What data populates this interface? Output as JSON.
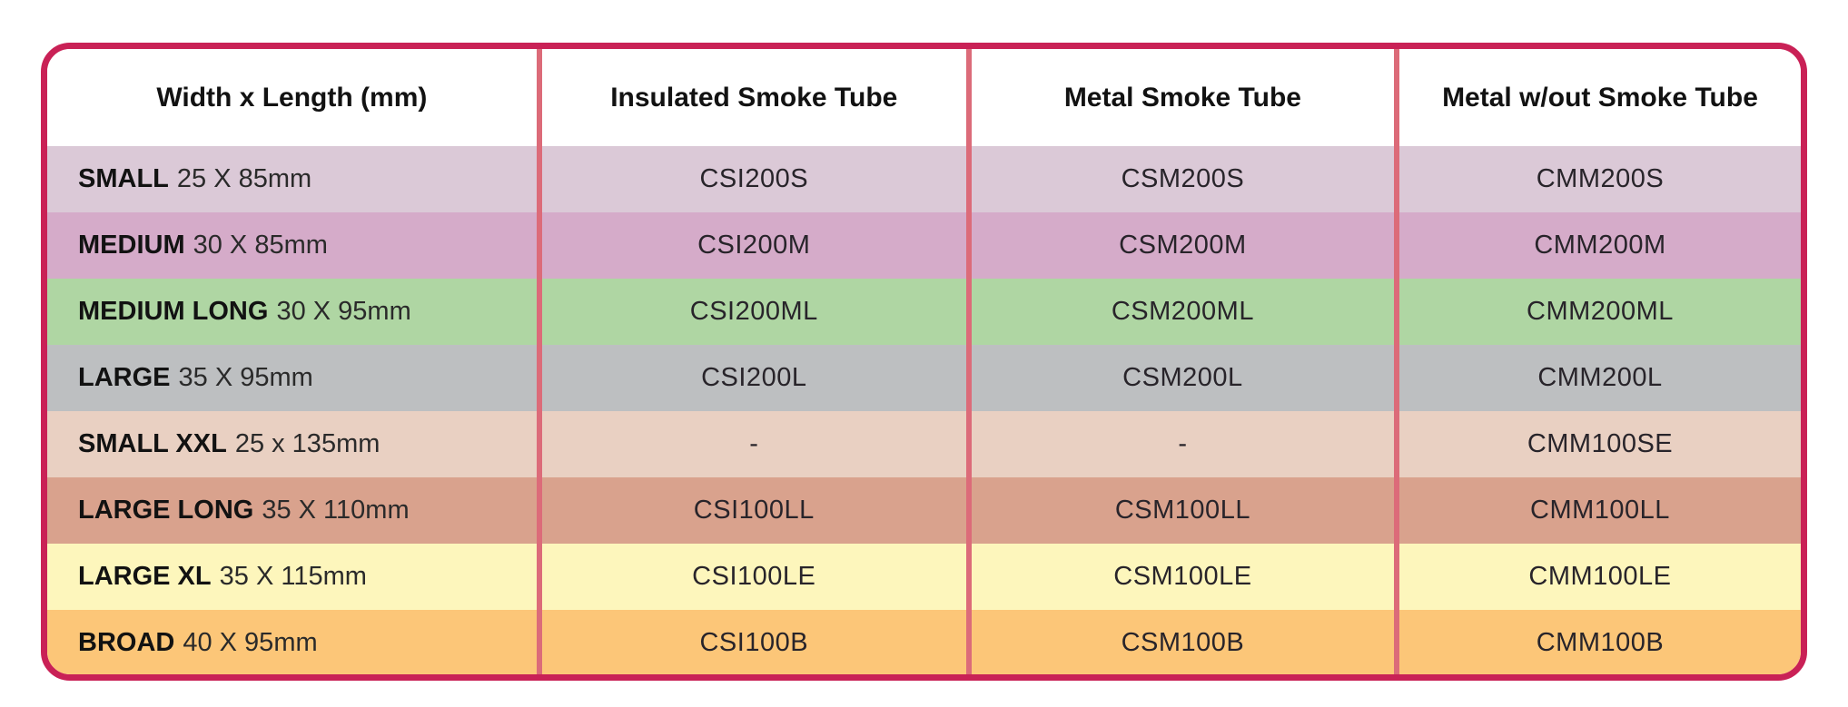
{
  "colors": {
    "table_border": "#c92156",
    "column_divider": "#dc6b79",
    "header_background": "#ffffff"
  },
  "chart_data": {
    "type": "table",
    "columns": [
      "Width x Length (mm)",
      "Insulated Smoke Tube",
      "Metal Smoke Tube",
      "Metal w/out Smoke Tube"
    ],
    "rows": [
      {
        "size_name": "SMALL",
        "dimensions": "25 X 85mm",
        "insulated_smoke_tube": "CSI200S",
        "metal_smoke_tube": "CSM200S",
        "metal_without_smoke_tube": "CMM200S",
        "row_color": "#dbc9d7"
      },
      {
        "size_name": "MEDIUM",
        "dimensions": "30 X 85mm",
        "insulated_smoke_tube": "CSI200M",
        "metal_smoke_tube": "CSM200M",
        "metal_without_smoke_tube": "CMM200M",
        "row_color": "#d5abc9"
      },
      {
        "size_name": "MEDIUM LONG",
        "dimensions": "30 X 95mm",
        "insulated_smoke_tube": "CSI200ML",
        "metal_smoke_tube": "CSM200ML",
        "metal_without_smoke_tube": "CMM200ML",
        "row_color": "#afd6a3"
      },
      {
        "size_name": "LARGE",
        "dimensions": "35 X 95mm",
        "insulated_smoke_tube": "CSI200L",
        "metal_smoke_tube": "CSM200L",
        "metal_without_smoke_tube": "CMM200L",
        "row_color": "#bdbfc1"
      },
      {
        "size_name": "SMALL XXL",
        "dimensions": "25 x 135mm",
        "insulated_smoke_tube": "-",
        "metal_smoke_tube": "-",
        "metal_without_smoke_tube": "CMM100SE",
        "row_color": "#e9d0c2"
      },
      {
        "size_name": "LARGE LONG",
        "dimensions": "35 X 110mm",
        "insulated_smoke_tube": "CSI100LL",
        "metal_smoke_tube": "CSM100LL",
        "metal_without_smoke_tube": "CMM100LL",
        "row_color": "#d9a28d"
      },
      {
        "size_name": "LARGE XL",
        "dimensions": "35 X 115mm",
        "insulated_smoke_tube": "CSI100LE",
        "metal_smoke_tube": "CSM100LE",
        "metal_without_smoke_tube": "CMM100LE",
        "row_color": "#fdf6bc"
      },
      {
        "size_name": "BROAD",
        "dimensions": "40 X 95mm",
        "insulated_smoke_tube": "CSI100B",
        "metal_smoke_tube": "CSM100B",
        "metal_without_smoke_tube": "CMM100B",
        "row_color": "#fcc678"
      }
    ]
  }
}
